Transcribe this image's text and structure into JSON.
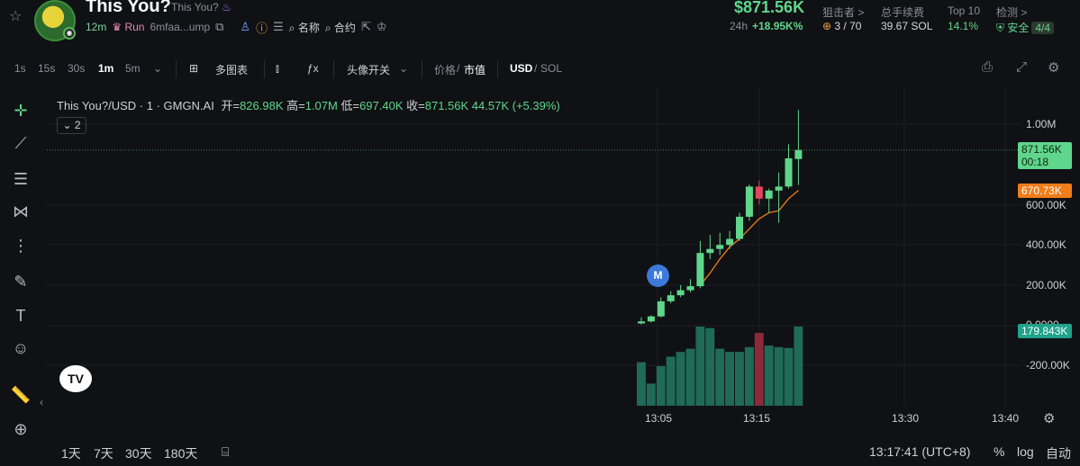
{
  "token": {
    "name": "This You?",
    "subname": "This You?",
    "age": "12m",
    "launch": "Run",
    "address": "6mfaa...ump",
    "name_label": "名称",
    "contract_label": "合约"
  },
  "market": {
    "price": "$871.56K",
    "change_label": "24h",
    "change_value": "+18.95K%"
  },
  "stats": [
    {
      "label": "狙击者 >",
      "value": "3 / 70"
    },
    {
      "label": "总手续费",
      "value": "39.67 SOL"
    },
    {
      "label": "Top 10",
      "value": "14.1%"
    },
    {
      "label": "检测 >",
      "value": "安全",
      "badge": "4/4"
    }
  ],
  "toolbar": {
    "intervals": [
      "1s",
      "15s",
      "30s",
      "1m",
      "5m"
    ],
    "active_interval": "1m",
    "multi_chart": "多图表",
    "avatar_toggle": "头像开关",
    "price_label": "价格",
    "mcap_label": "市值",
    "usd_label": "USD",
    "sol_label": "SOL"
  },
  "legend": {
    "symbol": "This You?/USD · 1 · GMGN.AI",
    "open_label": "开=",
    "open": "826.98K",
    "high_label": "高=",
    "high": "1.07M",
    "low_label": "低=",
    "low": "697.40K",
    "close_label": "收=",
    "close": "871.56K",
    "change": "44.57K (+5.39%)",
    "collapsed_count": "2"
  },
  "price_tags": {
    "current": "871.56K",
    "countdown": "00:18",
    "ma": "670.73K",
    "volume": "179.843K",
    "hidden_zero": "0.0000"
  },
  "colors": {
    "up": "#5fd68b",
    "down": "#e0475e",
    "vol_up": "#1f6b58",
    "vol_down": "#8c2a3b",
    "ma_line": "#f07d1a",
    "ma_tag": "#f07d1a",
    "vol_tag": "#1fa38a"
  },
  "marker_label": "M",
  "logo_text": "TV",
  "bottom": {
    "ranges": [
      "1天",
      "7天",
      "30天",
      "180天"
    ],
    "clock": "13:17:41 (UTC+8)",
    "percent": "%",
    "log": "log",
    "auto": "自动"
  },
  "chart_data": {
    "type": "candlestick",
    "y_axis_labels": [
      "1.00M",
      "600.00K",
      "400.00K",
      "200.00K",
      "0.0000",
      "-200.00K"
    ],
    "y_axis_values": [
      1000000,
      600000,
      400000,
      200000,
      0,
      -200000
    ],
    "x_axis_labels": [
      "13:05",
      "13:15",
      "13:30",
      "13:40"
    ],
    "candles": [
      {
        "o": 10000,
        "h": 40000,
        "l": 5000,
        "c": 20000
      },
      {
        "o": 20000,
        "h": 50000,
        "l": 15000,
        "c": 45000
      },
      {
        "o": 45000,
        "h": 140000,
        "l": 40000,
        "c": 120000
      },
      {
        "o": 120000,
        "h": 170000,
        "l": 110000,
        "c": 150000
      },
      {
        "o": 150000,
        "h": 200000,
        "l": 140000,
        "c": 175000
      },
      {
        "o": 175000,
        "h": 230000,
        "l": 165000,
        "c": 195000
      },
      {
        "o": 195000,
        "h": 420000,
        "l": 185000,
        "c": 360000
      },
      {
        "o": 360000,
        "h": 450000,
        "l": 330000,
        "c": 380000
      },
      {
        "o": 380000,
        "h": 460000,
        "l": 350000,
        "c": 400000
      },
      {
        "o": 400000,
        "h": 470000,
        "l": 380000,
        "c": 430000
      },
      {
        "o": 430000,
        "h": 560000,
        "l": 420000,
        "c": 540000
      },
      {
        "o": 540000,
        "h": 700000,
        "l": 520000,
        "c": 690000
      },
      {
        "o": 690000,
        "h": 720000,
        "l": 600000,
        "c": 630000
      },
      {
        "o": 630000,
        "h": 680000,
        "l": 560000,
        "c": 670000
      },
      {
        "o": 670000,
        "h": 760000,
        "l": 510000,
        "c": 690000
      },
      {
        "o": 690000,
        "h": 900000,
        "l": 680000,
        "c": 830000
      },
      {
        "o": 826980,
        "h": 1070000,
        "l": 697400,
        "c": 871560
      }
    ],
    "volume_pct": [
      55,
      28,
      50,
      62,
      68,
      72,
      100,
      98,
      72,
      68,
      68,
      74,
      92,
      76,
      74,
      73,
      100
    ],
    "ma_values": [
      null,
      null,
      null,
      null,
      null,
      null,
      200000,
      260000,
      330000,
      390000,
      430000,
      480000,
      530000,
      560000,
      570000,
      630000,
      670730
    ]
  }
}
